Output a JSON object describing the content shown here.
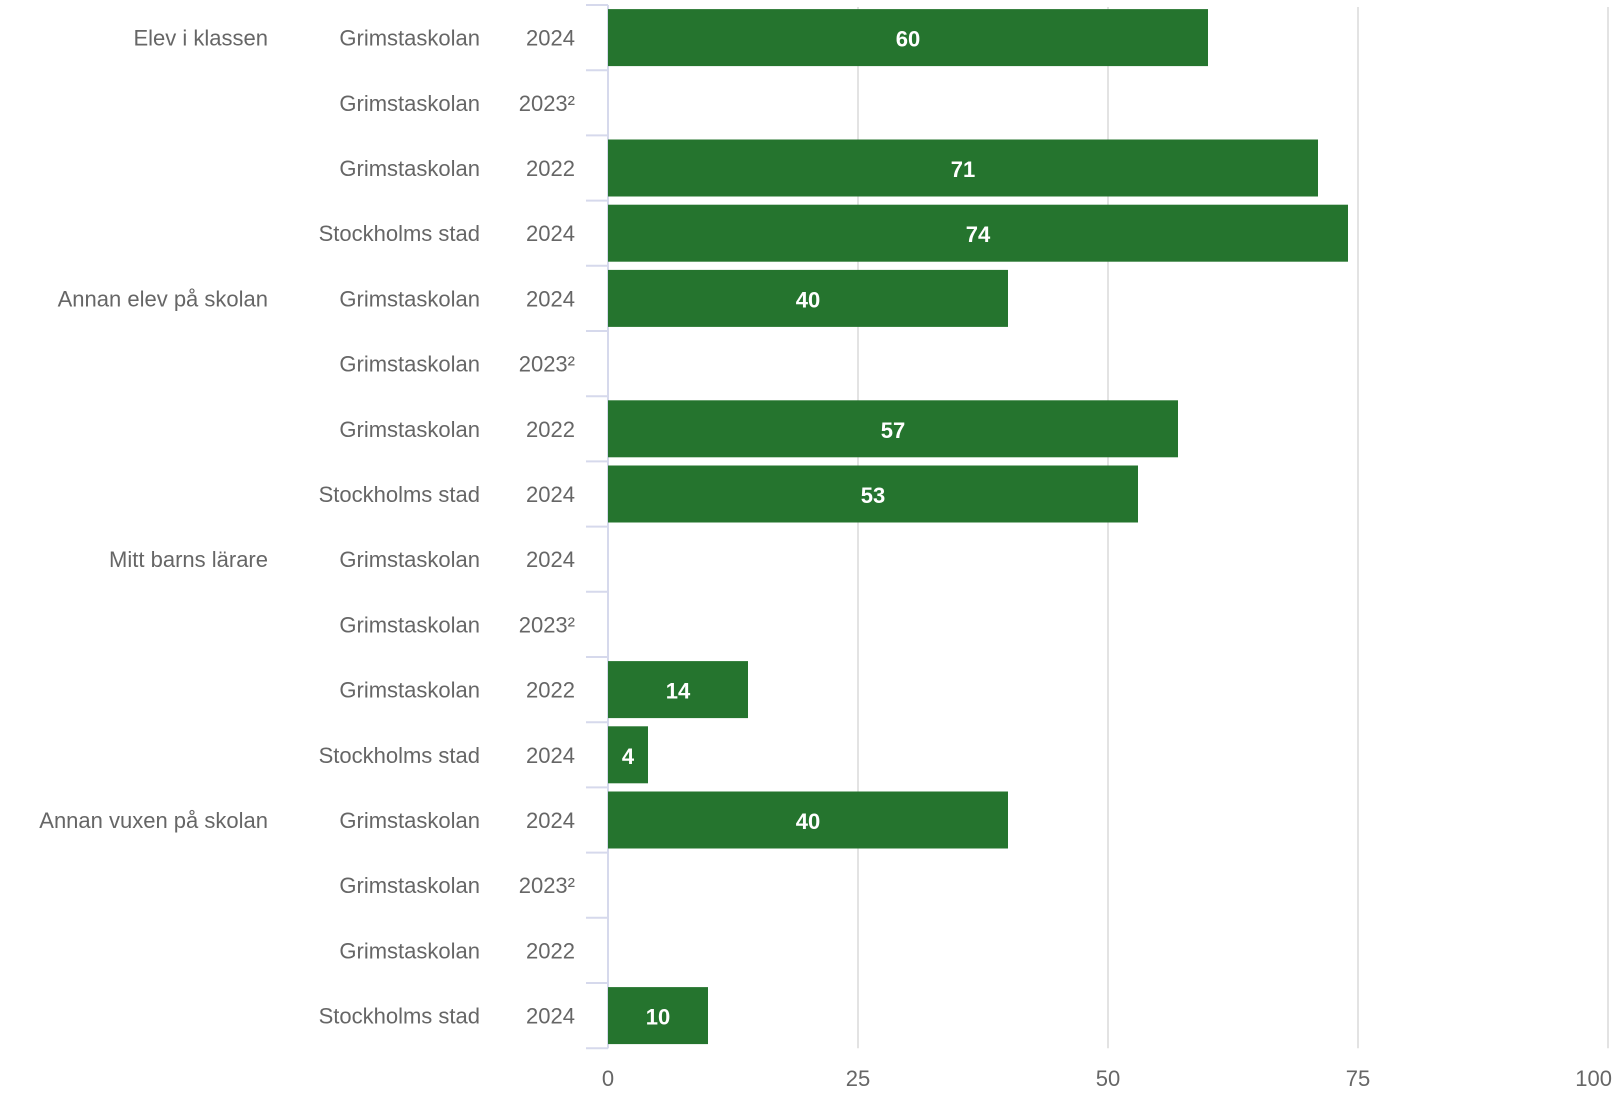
{
  "chart_data": {
    "type": "bar",
    "orientation": "horizontal",
    "title": "",
    "xlabel": "",
    "ylabel": "",
    "xlim": [
      0,
      100
    ],
    "x_ticks": [
      "0",
      "25",
      "50",
      "75",
      "100"
    ],
    "grid": true,
    "bar_color": "#25742e",
    "rows": [
      {
        "category": "Elev i klassen",
        "source": "Grimstaskolan",
        "year": "2024",
        "value": 60
      },
      {
        "category": "",
        "source": "Grimstaskolan",
        "year": "2023²",
        "value": null
      },
      {
        "category": "",
        "source": "Grimstaskolan",
        "year": "2022",
        "value": 71
      },
      {
        "category": "",
        "source": "Stockholms stad",
        "year": "2024",
        "value": 74
      },
      {
        "category": "Annan elev på skolan",
        "source": "Grimstaskolan",
        "year": "2024",
        "value": 40
      },
      {
        "category": "",
        "source": "Grimstaskolan",
        "year": "2023²",
        "value": null
      },
      {
        "category": "",
        "source": "Grimstaskolan",
        "year": "2022",
        "value": 57
      },
      {
        "category": "",
        "source": "Stockholms stad",
        "year": "2024",
        "value": 53
      },
      {
        "category": "Mitt barns lärare",
        "source": "Grimstaskolan",
        "year": "2024",
        "value": null
      },
      {
        "category": "",
        "source": "Grimstaskolan",
        "year": "2023²",
        "value": null
      },
      {
        "category": "",
        "source": "Grimstaskolan",
        "year": "2022",
        "value": 14
      },
      {
        "category": "",
        "source": "Stockholms stad",
        "year": "2024",
        "value": 4
      },
      {
        "category": "Annan vuxen på skolan",
        "source": "Grimstaskolan",
        "year": "2024",
        "value": 40
      },
      {
        "category": "",
        "source": "Grimstaskolan",
        "year": "2023²",
        "value": null
      },
      {
        "category": "",
        "source": "Grimstaskolan",
        "year": "2022",
        "value": null
      },
      {
        "category": "",
        "source": "Stockholms stad",
        "year": "2024",
        "value": 10
      }
    ]
  }
}
